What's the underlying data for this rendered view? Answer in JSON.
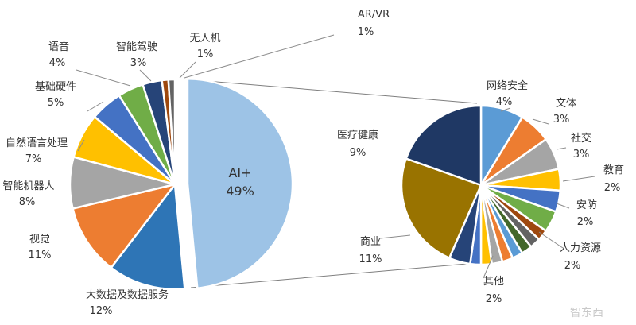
{
  "chart_data": [
    {
      "type": "pie",
      "labels": [
        "AI+",
        "大数据及数据服务",
        "视觉",
        "智能机器人",
        "自然语言处理",
        "基础硬件",
        "语音",
        "智能驾驶",
        "无人机",
        "AR/VR"
      ],
      "values": [
        49,
        12,
        11,
        8,
        7,
        5,
        4,
        3,
        1,
        1
      ],
      "value_labels": [
        "49%",
        "12%",
        "11%",
        "8%",
        "7%",
        "5%",
        "4%",
        "3%",
        "1%",
        "1%"
      ],
      "colors": [
        "#9dc3e6",
        "#2e75b6",
        "#ed7d31",
        "#a5a5a5",
        "#ffc000",
        "#4472c4",
        "#70ad47",
        "#264478",
        "#9e480e",
        "#636363"
      ],
      "exploded_slice": "AI+"
    },
    {
      "type": "pie",
      "labels": [
        "网络安全",
        "文体",
        "社交",
        "教育",
        "安防",
        "人力资源",
        "其他",
        "商业",
        "医疗健康"
      ],
      "values": [
        4,
        3,
        3,
        2,
        2,
        2,
        2,
        11,
        9
      ],
      "value_labels": [
        "4%",
        "3%",
        "3%",
        "2%",
        "2%",
        "2%",
        "2%",
        "11%",
        "9%"
      ],
      "colors": [
        "#5b9bd5",
        "#ed7d31",
        "#a5a5a5",
        "#ffc000",
        "#4472c4",
        "#70ad47",
        "#264478",
        "#997300",
        "#1f3864"
      ],
      "unlabeled_minor_slices": {
        "count": 8,
        "colors": [
          "#9e480e",
          "#636363",
          "#43682b",
          "#5b9bd5",
          "#ed7d31",
          "#a5a5a5",
          "#ffc000",
          "#4472c4"
        ]
      },
      "breakout_of": "AI+"
    }
  ],
  "watermark": "智东西"
}
